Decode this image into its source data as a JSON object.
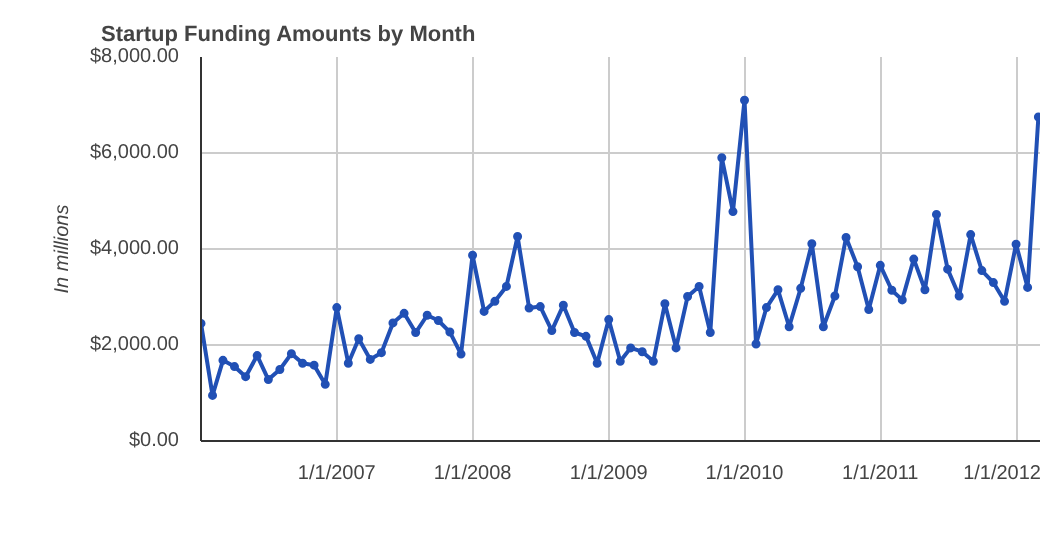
{
  "chart_data": {
    "type": "line",
    "title": "Startup Funding Amounts by Month",
    "ylabel": "In millions",
    "x": [
      "2006-01",
      "2006-02",
      "2006-03",
      "2006-04",
      "2006-05",
      "2006-06",
      "2006-07",
      "2006-08",
      "2006-09",
      "2006-10",
      "2006-11",
      "2006-12",
      "2007-01",
      "2007-02",
      "2007-03",
      "2007-04",
      "2007-05",
      "2007-06",
      "2007-07",
      "2007-08",
      "2007-09",
      "2007-10",
      "2007-11",
      "2007-12",
      "2008-01",
      "2008-02",
      "2008-03",
      "2008-04",
      "2008-05",
      "2008-06",
      "2008-07",
      "2008-08",
      "2008-09",
      "2008-10",
      "2008-11",
      "2008-12",
      "2009-01",
      "2009-02",
      "2009-03",
      "2009-04",
      "2009-05",
      "2009-06",
      "2009-07",
      "2009-08",
      "2009-09",
      "2009-10",
      "2009-11",
      "2009-12",
      "2010-01",
      "2010-02",
      "2010-03",
      "2010-04",
      "2010-05",
      "2010-06",
      "2010-07",
      "2010-08",
      "2010-09",
      "2010-10",
      "2010-11",
      "2010-12",
      "2011-01",
      "2011-02",
      "2011-03",
      "2011-04",
      "2011-05",
      "2011-06",
      "2011-07",
      "2011-08",
      "2011-09",
      "2011-10",
      "2011-11",
      "2011-12",
      "2012-01",
      "2012-02",
      "2012-03"
    ],
    "series": [
      {
        "color": "#2150b5",
        "values": [
          2450,
          950,
          1680,
          1550,
          1340,
          1780,
          1280,
          1490,
          1820,
          1620,
          1580,
          1180,
          2780,
          1620,
          2130,
          1700,
          1840,
          2460,
          2660,
          2260,
          2620,
          2510,
          2270,
          1810,
          3870,
          2700,
          2910,
          3220,
          4260,
          2770,
          2800,
          2300,
          2830,
          2260,
          2180,
          1620,
          2530,
          1660,
          1940,
          1860,
          1660,
          2860,
          1940,
          3010,
          3220,
          2260,
          5900,
          4780,
          7100,
          2020,
          2780,
          3150,
          2380,
          3180,
          4110,
          2380,
          3020,
          4240,
          3630,
          2740,
          3660,
          3140,
          2940,
          3790,
          3150,
          4720,
          3580,
          3020,
          4300,
          3550,
          3300,
          2910,
          4100,
          3200,
          6750
        ]
      }
    ],
    "xlim": [
      "2006-01-01",
      "2012-03-08"
    ],
    "xticks": [
      {
        "value": "2007-01-01",
        "label": "1/1/2007"
      },
      {
        "value": "2008-01-01",
        "label": "1/1/2008"
      },
      {
        "value": "2009-01-01",
        "label": "1/1/2009"
      },
      {
        "value": "2010-01-01",
        "label": "1/1/2010"
      },
      {
        "value": "2011-01-01",
        "label": "1/1/2011"
      },
      {
        "value": "2012-01-01",
        "label": "1/1/2012"
      }
    ],
    "ylim": [
      0,
      8000
    ],
    "yticks": [
      {
        "value": 0,
        "label": "$0.00"
      },
      {
        "value": 2000,
        "label": "$2,000.00"
      },
      {
        "value": 4000,
        "label": "$4,000.00"
      },
      {
        "value": 6000,
        "label": "$6,000.00"
      },
      {
        "value": 8000,
        "label": "$8,000.00"
      }
    ],
    "grid": true,
    "marker": "circle",
    "line_style": "solid"
  }
}
